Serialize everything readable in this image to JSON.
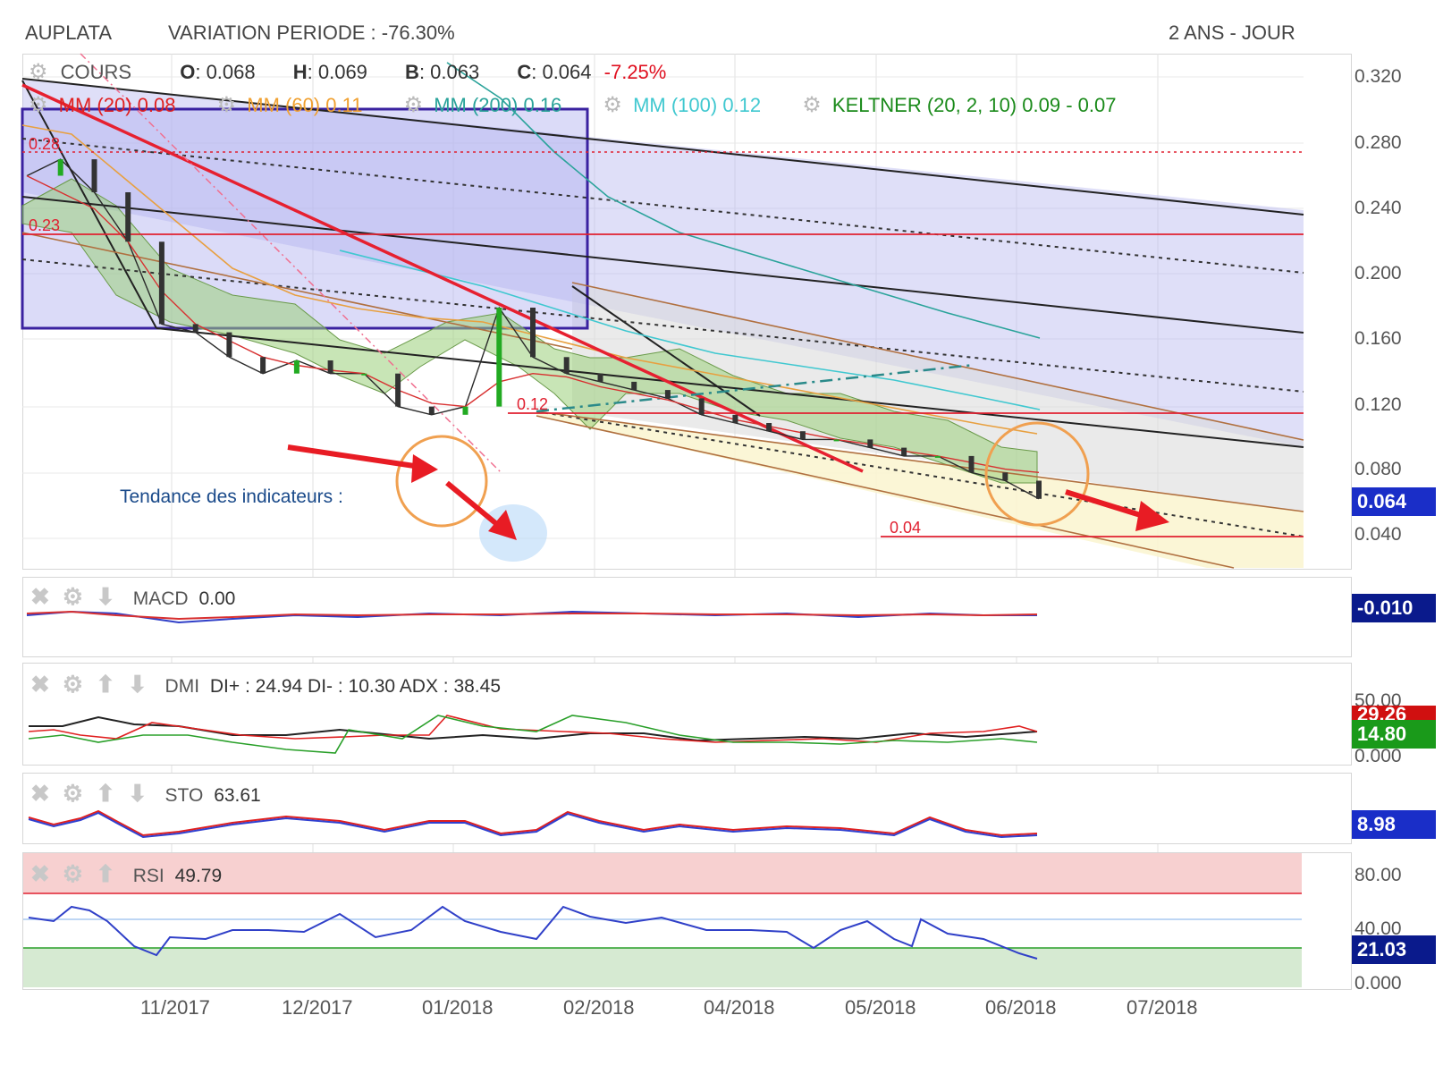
{
  "header": {
    "ticker": "AUPLATA",
    "variation": "VARIATION PERIODE : -76.30%",
    "period": "2 ANS - JOUR"
  },
  "legend": {
    "cours_label": "COURS",
    "ohlc": [
      {
        "key": "O",
        "value": ": 0.068"
      },
      {
        "key": "H",
        "value": ": 0.069"
      },
      {
        "key": "B",
        "value": ": 0.063"
      },
      {
        "key": "C",
        "value": ": 0.064"
      }
    ],
    "change": "-7.25%",
    "indicators": [
      {
        "label": "MM (20)",
        "value": "0.08",
        "color": "#e02020"
      },
      {
        "label": "MM (60)",
        "value": "0.11",
        "color": "#f0a030"
      },
      {
        "label": "MM (200)",
        "value": "0.16",
        "color": "#2aa39a"
      },
      {
        "label": "MM (100)",
        "value": "0.12",
        "color": "#40c8d0"
      },
      {
        "label": "KELTNER (20, 2, 10)",
        "value": "0.09 - 0.07",
        "color": "#1a8a1a"
      }
    ]
  },
  "annotations": {
    "trend_text": "Tendance des indicateurs :",
    "level_028": "0.28",
    "level_023": "0.23",
    "level_012": "0.12",
    "level_004": "0.04"
  },
  "price_axis": {
    "ticks": [
      "0.320",
      "0.280",
      "0.240",
      "0.200",
      "0.160",
      "0.120",
      "0.080",
      "0.040"
    ],
    "last_value": "0.064"
  },
  "x_axis": {
    "months": [
      "11/2017",
      "12/2017",
      "01/2018",
      "02/2018",
      "04/2018",
      "05/2018",
      "06/2018",
      "07/2018"
    ]
  },
  "macd": {
    "label": "MACD",
    "value": "0.00",
    "last": "-0.010"
  },
  "dmi": {
    "label": "DMI",
    "value": "DI+ : 24.94 DI- : 10.30 ADX : 38.45",
    "axis_top": "50.00",
    "axis_bottom": "0.000",
    "badge_red": "29.26",
    "badge_green": "14.80"
  },
  "sto": {
    "label": "STO",
    "value": "63.61",
    "last": "8.98"
  },
  "rsi": {
    "label": "RSI",
    "value": "49.79",
    "axis": [
      "80.00",
      "40.00",
      "0.000"
    ],
    "last": "21.03"
  },
  "colors": {
    "price_up": "#22aa22",
    "price_down": "#333333",
    "badge_blue": "#1a2ec8",
    "badge_navy": "#0a1a8c",
    "badge_red": "#d01010",
    "badge_green": "#1a9a1a",
    "support_red": "#e01020"
  },
  "chart_data": {
    "type": "line",
    "title": "",
    "x_range": [
      "2017-09",
      "2018-07"
    ],
    "ylim": [
      0.02,
      0.33
    ],
    "series": [
      {
        "name": "COURS",
        "values": [
          0.26,
          0.27,
          0.25,
          0.22,
          0.17,
          0.165,
          0.15,
          0.14,
          0.148,
          0.14,
          0.14,
          0.12,
          0.115,
          0.12,
          0.18,
          0.15,
          0.14,
          0.135,
          0.13,
          0.125,
          0.115,
          0.11,
          0.105,
          0.1,
          0.1,
          0.095,
          0.09,
          0.09,
          0.08,
          0.075,
          0.064
        ]
      },
      {
        "name": "MM (20)",
        "values": [
          0.26,
          0.25,
          0.24,
          0.22,
          0.19,
          0.17,
          0.16,
          0.15,
          0.145,
          0.142,
          0.14,
          0.13,
          0.122,
          0.12,
          0.135,
          0.14,
          0.138,
          0.132,
          0.128,
          0.124,
          0.118,
          0.112,
          0.108,
          0.104,
          0.1,
          0.097,
          0.093,
          0.09,
          0.086,
          0.082,
          0.08
        ]
      }
    ]
  }
}
